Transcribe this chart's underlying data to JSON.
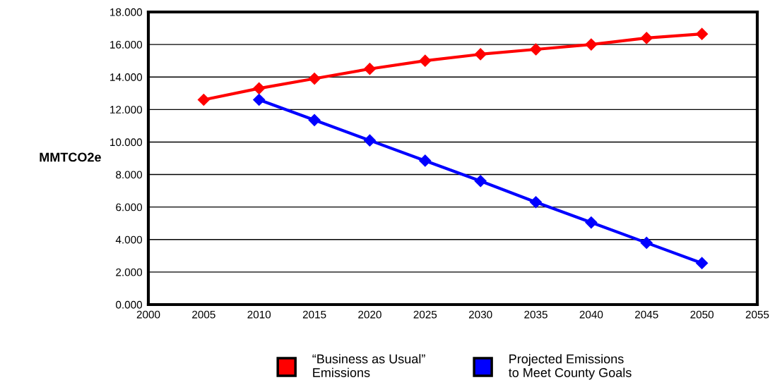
{
  "chart_data": {
    "type": "line",
    "ylabel": "MMTCO2e",
    "x": [
      2005,
      2010,
      2015,
      2020,
      2025,
      2030,
      2035,
      2040,
      2045,
      2050
    ],
    "series": [
      {
        "name": "“Business as Usual”\nEmissions",
        "color": "#ff0000",
        "values": [
          12.6,
          13.3,
          13.9,
          14.5,
          15.0,
          15.4,
          15.7,
          16.0,
          16.4,
          16.65
        ]
      },
      {
        "name": "Projected Emissions\nto Meet County Goals",
        "color": "#0000ff",
        "values": [
          null,
          12.6,
          11.35,
          10.1,
          8.85,
          7.6,
          6.3,
          5.05,
          3.8,
          2.55
        ]
      }
    ],
    "xlim": [
      2000,
      2055
    ],
    "xticks": [
      2000,
      2005,
      2010,
      2015,
      2020,
      2025,
      2030,
      2035,
      2040,
      2045,
      2050,
      2055
    ],
    "ylim": [
      0,
      18
    ],
    "yticks": [
      {
        "value": 0,
        "label": "0.000"
      },
      {
        "value": 2,
        "label": "2.000"
      },
      {
        "value": 4,
        "label": "4.000"
      },
      {
        "value": 6,
        "label": "6.000"
      },
      {
        "value": 8,
        "label": "8.000"
      },
      {
        "value": 10,
        "label": "10.000"
      },
      {
        "value": 12,
        "label": "12.000"
      },
      {
        "value": 14,
        "label": "14.000"
      },
      {
        "value": 16,
        "label": "16.000"
      },
      {
        "value": 18,
        "label": "18.000"
      }
    ],
    "grid": "y",
    "legend": "bottom",
    "marker": "diamond",
    "line_style": "solid"
  }
}
